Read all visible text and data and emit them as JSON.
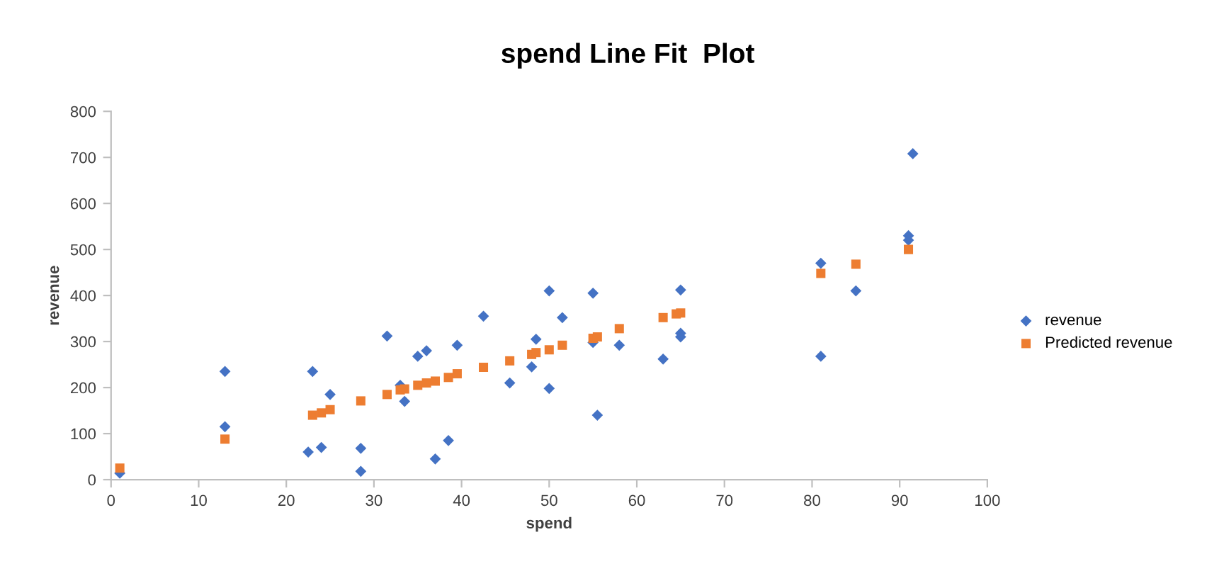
{
  "chart_data": {
    "type": "scatter",
    "title": "spend Line Fit  Plot",
    "xlabel": "spend",
    "ylabel": "revenue",
    "xlim": [
      0,
      100
    ],
    "xticks": [
      0,
      10,
      20,
      30,
      40,
      50,
      60,
      70,
      80,
      90,
      100
    ],
    "ylim": [
      0,
      800
    ],
    "yticks": [
      0,
      100,
      200,
      300,
      400,
      500,
      600,
      700,
      800
    ],
    "grid": false,
    "legend": "right",
    "series": [
      {
        "name": "revenue",
        "color": "#4472c4",
        "marker": "diamond",
        "x": [
          1,
          13,
          13,
          22.5,
          23,
          24,
          25,
          28.5,
          28.5,
          31.5,
          33,
          33.5,
          35,
          36,
          37,
          38.5,
          39.5,
          42.5,
          45.5,
          48,
          48.5,
          50,
          50,
          51.5,
          55,
          55.5,
          55,
          58,
          63,
          65,
          65,
          65,
          81,
          81,
          85,
          91,
          91,
          91.5
        ],
        "values": [
          14,
          235,
          115,
          60,
          235,
          70,
          185,
          68,
          18,
          312,
          205,
          170,
          268,
          280,
          45,
          85,
          292,
          355,
          210,
          245,
          305,
          410,
          198,
          352,
          405,
          140,
          298,
          292,
          262,
          412,
          310,
          318,
          268,
          470,
          410,
          530,
          520,
          708
        ]
      },
      {
        "name": "Predicted revenue",
        "color": "#ed7d31",
        "marker": "square",
        "x": [
          1,
          13,
          23,
          24,
          25,
          28.5,
          31.5,
          33,
          33.5,
          35,
          36,
          37,
          38.5,
          39.5,
          42.5,
          45.5,
          48,
          48.5,
          50,
          51.5,
          55,
          55.5,
          58,
          63,
          64.5,
          65,
          81,
          85,
          91
        ],
        "values": [
          25,
          88,
          140,
          145,
          152,
          171,
          185,
          195,
          197,
          205,
          210,
          214,
          222,
          230,
          244,
          258,
          272,
          276,
          282,
          292,
          307,
          310,
          328,
          352,
          360,
          362,
          448,
          468,
          500
        ]
      }
    ]
  }
}
